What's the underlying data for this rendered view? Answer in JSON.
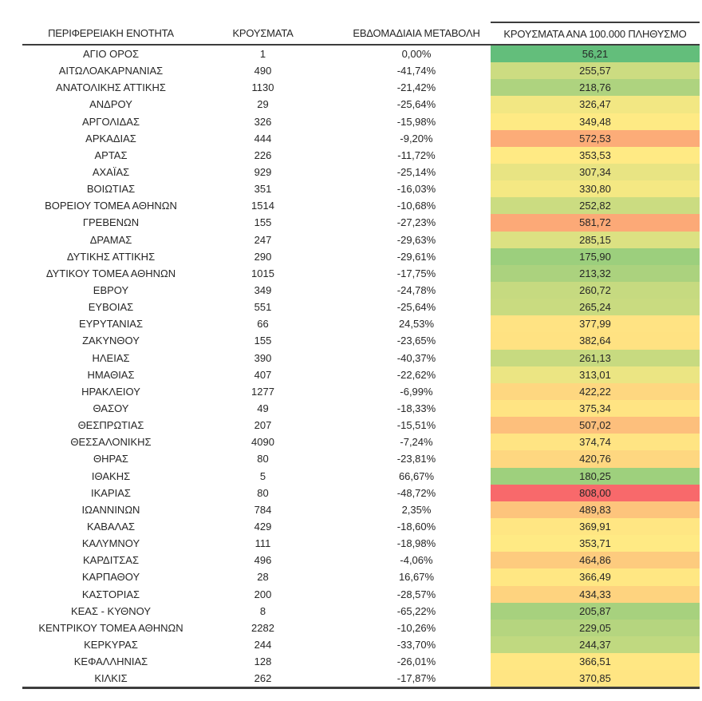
{
  "page": {
    "background": "#ffffff",
    "text_color": "#262626",
    "border_color": "#3d3d3d"
  },
  "chart_data": {
    "type": "table",
    "columns": [
      "ΠΕΡΙΦΕΡΕΙΑΚΗ ΕΝΟΤΗΤΑ",
      "ΚΡΟΥΣΜΑΤΑ",
      "ΕΒΔΟΜΑΔΙΑΙΑ ΜΕΤΑΒΟΛΗ",
      "ΚΡΟΥΣΜΑΤΑ ΑΝΑ 100.000 ΠΛΗΘΥΣΜΟ"
    ],
    "heatmap_column": "ΚΡΟΥΣΜΑΤΑ ΑΝΑ 100.000 ΠΛΗΘΥΣΜΟ",
    "color_scale": {
      "min_color": "#63be7b",
      "mid_color": "#ffeb84",
      "max_color": "#f8696b",
      "min_value": 56.21,
      "max_value": 808.0
    },
    "number_format": {
      "decimal_separator": ",",
      "percent_decimals": 2,
      "rate_decimals": 2
    },
    "rows": [
      {
        "region": "ΑΓΙΟ ΟΡΟΣ",
        "cases": 1,
        "weekly_change_pct": 0.0,
        "per_100k": 56.21,
        "color": "#63be7b"
      },
      {
        "region": "ΑΙΤΩΛΟΑΚΑΡΝΑΝΙΑΣ",
        "cases": 490,
        "weekly_change_pct": -41.74,
        "per_100k": 255.57,
        "color": "#ccdc81"
      },
      {
        "region": "ΑΝΑΤΟΛΙΚΗΣ ΑΤΤΙΚΗΣ",
        "cases": 1130,
        "weekly_change_pct": -21.42,
        "per_100k": 218.76,
        "color": "#aed37f"
      },
      {
        "region": "ΑΝΔΡΟΥ",
        "cases": 29,
        "weekly_change_pct": -25.64,
        "per_100k": 326.47,
        "color": "#f2e783"
      },
      {
        "region": "ΑΡΓΟΛΙΔΑΣ",
        "cases": 326,
        "weekly_change_pct": -15.98,
        "per_100k": 349.48,
        "color": "#feea84"
      },
      {
        "region": "ΑΡΚΑΔΙΑΣ",
        "cases": 444,
        "weekly_change_pct": -9.2,
        "per_100k": 572.53,
        "color": "#fcac78"
      },
      {
        "region": "ΑΡΤΑΣ",
        "cases": 226,
        "weekly_change_pct": -11.72,
        "per_100k": 353.53,
        "color": "#ffea84"
      },
      {
        "region": "ΑΧΑΪΑΣ",
        "cases": 929,
        "weekly_change_pct": -25.14,
        "per_100k": 307.34,
        "color": "#e8e483"
      },
      {
        "region": "ΒΟΙΩΤΙΑΣ",
        "cases": 351,
        "weekly_change_pct": -16.03,
        "per_100k": 330.8,
        "color": "#f4e883"
      },
      {
        "region": "ΒΟΡΕΙΟΥ ΤΟΜΕΑ ΑΘΗΝΩΝ",
        "cases": 1514,
        "weekly_change_pct": -10.68,
        "per_100k": 252.82,
        "color": "#cbdc81"
      },
      {
        "region": "ΓΡΕΒΕΝΩΝ",
        "cases": 155,
        "weekly_change_pct": -27.23,
        "per_100k": 581.72,
        "color": "#fca977"
      },
      {
        "region": "ΔΡΑΜΑΣ",
        "cases": 247,
        "weekly_change_pct": -29.63,
        "per_100k": 285.15,
        "color": "#dce182"
      },
      {
        "region": "ΔΥΤΙΚΗΣ ΑΤΤΙΚΗΣ",
        "cases": 290,
        "weekly_change_pct": -29.61,
        "per_100k": 175.9,
        "color": "#9ccf7d"
      },
      {
        "region": "ΔΥΤΙΚΟΥ ΤΟΜΕΑ ΑΘΗΝΩΝ",
        "cases": 1015,
        "weekly_change_pct": -17.75,
        "per_100k": 213.32,
        "color": "#abd27e"
      },
      {
        "region": "ΕΒΡΟΥ",
        "cases": 349,
        "weekly_change_pct": -24.78,
        "per_100k": 260.72,
        "color": "#c6da80"
      },
      {
        "region": "ΕΥΒΟΙΑΣ",
        "cases": 551,
        "weekly_change_pct": -25.64,
        "per_100k": 265.24,
        "color": "#c9db80"
      },
      {
        "region": "ΕΥΡΥΤΑΝΙΑΣ",
        "cases": 66,
        "weekly_change_pct": 24.53,
        "per_100k": 377.99,
        "color": "#ffe383"
      },
      {
        "region": "ΖΑΚΥΝΘΟΥ",
        "cases": 155,
        "weekly_change_pct": -23.65,
        "per_100k": 382.64,
        "color": "#ffe282"
      },
      {
        "region": "ΗΛΕΙΑΣ",
        "cases": 390,
        "weekly_change_pct": -40.37,
        "per_100k": 261.13,
        "color": "#c7da80"
      },
      {
        "region": "ΗΜΑΘΙΑΣ",
        "cases": 407,
        "weekly_change_pct": -22.62,
        "per_100k": 313.01,
        "color": "#ebe583"
      },
      {
        "region": "ΗΡΑΚΛΕΙΟΥ",
        "cases": 1277,
        "weekly_change_pct": -6.99,
        "per_100k": 422.22,
        "color": "#fed780"
      },
      {
        "region": "ΘΑΣΟΥ",
        "cases": 49,
        "weekly_change_pct": -18.33,
        "per_100k": 375.34,
        "color": "#ffe483"
      },
      {
        "region": "ΘΕΣΠΡΩΤΙΑΣ",
        "cases": 207,
        "weekly_change_pct": -15.51,
        "per_100k": 507.02,
        "color": "#fdbf7c"
      },
      {
        "region": "ΘΕΣΣΑΛΟΝΙΚΗΣ",
        "cases": 4090,
        "weekly_change_pct": -7.24,
        "per_100k": 374.74,
        "color": "#ffe483"
      },
      {
        "region": "ΘΗΡΑΣ",
        "cases": 80,
        "weekly_change_pct": -23.81,
        "per_100k": 420.76,
        "color": "#fed780"
      },
      {
        "region": "ΙΘΑΚΗΣ",
        "cases": 5,
        "weekly_change_pct": 66.67,
        "per_100k": 180.25,
        "color": "#9ed07d"
      },
      {
        "region": "ΙΚΑΡΙΑΣ",
        "cases": 80,
        "weekly_change_pct": -48.72,
        "per_100k": 808.0,
        "color": "#f8696b"
      },
      {
        "region": "ΙΩΑΝΝΙΝΩΝ",
        "cases": 784,
        "weekly_change_pct": 2.35,
        "per_100k": 489.83,
        "color": "#fdc47c"
      },
      {
        "region": "ΚΑΒΑΛΑΣ",
        "cases": 429,
        "weekly_change_pct": -18.6,
        "per_100k": 369.91,
        "color": "#ffe683"
      },
      {
        "region": "ΚΑΛΥΜΝΟΥ",
        "cases": 111,
        "weekly_change_pct": -18.98,
        "per_100k": 353.71,
        "color": "#ffea84"
      },
      {
        "region": "ΚΑΡΔΙΤΣΑΣ",
        "cases": 496,
        "weekly_change_pct": -4.06,
        "per_100k": 464.86,
        "color": "#fdcb7e"
      },
      {
        "region": "ΚΑΡΠΑΘΟΥ",
        "cases": 28,
        "weekly_change_pct": 16.67,
        "per_100k": 366.49,
        "color": "#ffe783"
      },
      {
        "region": "ΚΑΣΤΟΡΙΑΣ",
        "cases": 200,
        "weekly_change_pct": -28.57,
        "per_100k": 434.33,
        "color": "#fed37f"
      },
      {
        "region": "ΚΕΑΣ - ΚΥΘΝΟΥ",
        "cases": 8,
        "weekly_change_pct": -65.22,
        "per_100k": 205.87,
        "color": "#a7d17e"
      },
      {
        "region": "ΚΕΝΤΡΙΚΟΥ ΤΟΜΕΑ ΑΘΗΝΩΝ",
        "cases": 2282,
        "weekly_change_pct": -10.26,
        "per_100k": 229.05,
        "color": "#b5d57f"
      },
      {
        "region": "ΚΕΡΚΥΡΑΣ",
        "cases": 244,
        "weekly_change_pct": -33.7,
        "per_100k": 244.37,
        "color": "#c0d980"
      },
      {
        "region": "ΚΕΦΑΛΛΗΝΙΑΣ",
        "cases": 128,
        "weekly_change_pct": -26.01,
        "per_100k": 366.51,
        "color": "#ffe783"
      },
      {
        "region": "ΚΙΛΚΙΣ",
        "cases": 262,
        "weekly_change_pct": -17.87,
        "per_100k": 370.85,
        "color": "#ffe583"
      }
    ]
  }
}
